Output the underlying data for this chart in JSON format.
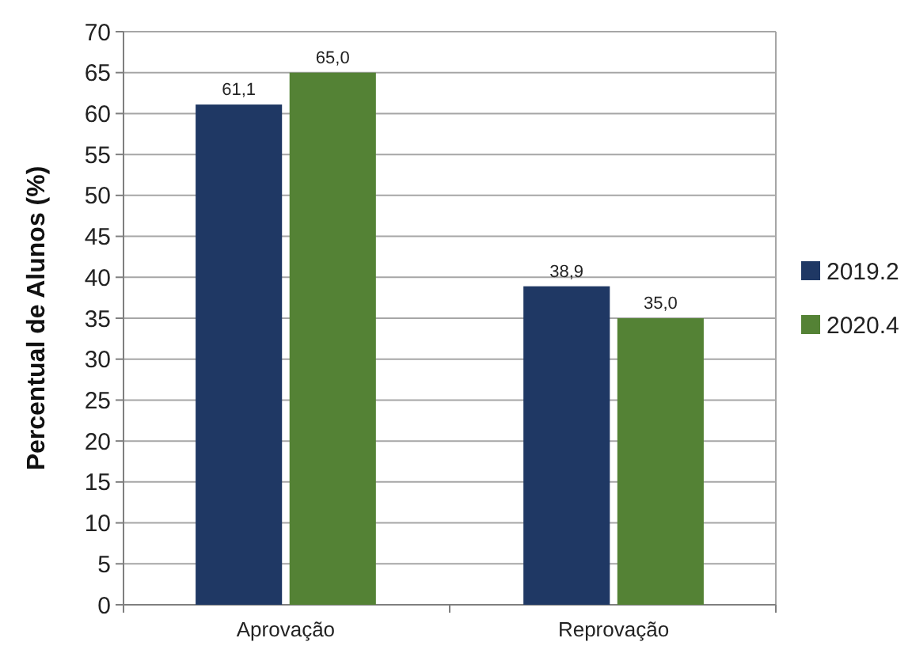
{
  "chart_data": {
    "type": "bar",
    "ylabel": "Percentual de Alunos (%)",
    "categories": [
      "Aprovação",
      "Reprovação"
    ],
    "series": [
      {
        "name": "2019.2",
        "color": "#1f3864",
        "values": [
          61.1,
          38.9
        ],
        "value_labels": [
          "61,1",
          "38,9"
        ]
      },
      {
        "name": "2020.4",
        "color": "#548235",
        "values": [
          65.0,
          35.0
        ],
        "value_labels": [
          "65,0",
          "35,0"
        ]
      }
    ],
    "ylim": [
      0,
      70
    ],
    "yticks": [
      0,
      5,
      10,
      15,
      20,
      25,
      30,
      35,
      40,
      45,
      50,
      55,
      60,
      65,
      70
    ],
    "grid": "y",
    "legend": "right"
  }
}
